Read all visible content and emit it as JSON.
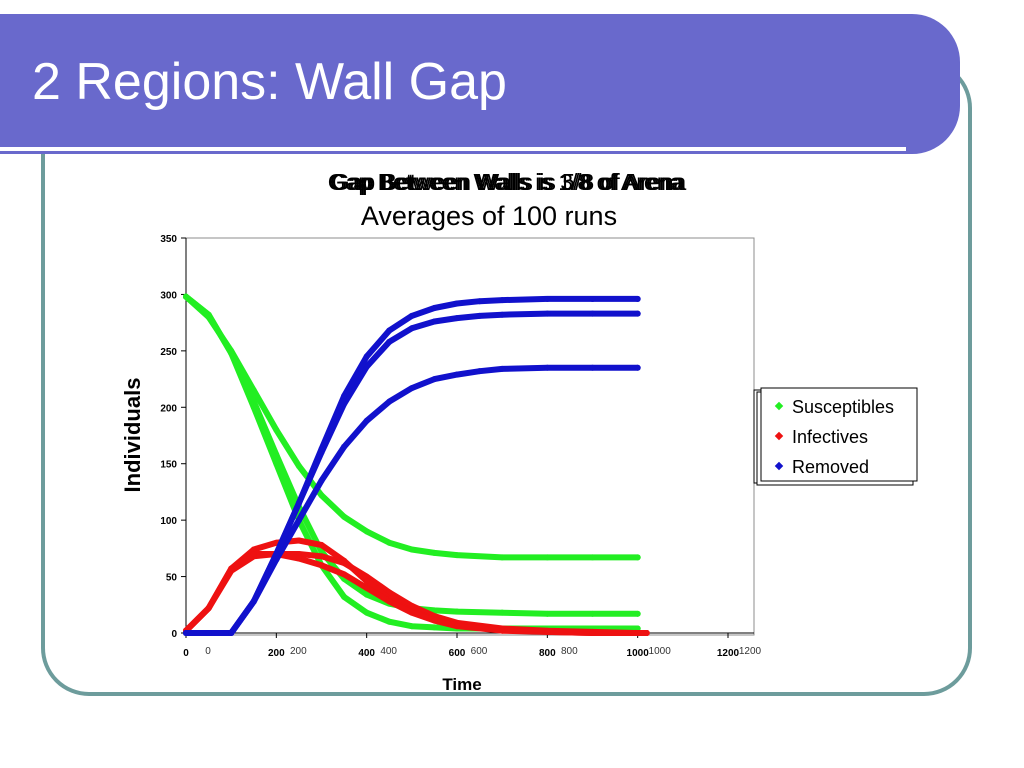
{
  "slide": {
    "title": "2 Regions: Wall Gap"
  },
  "colors": {
    "title_bar": "#6969cc",
    "frame": "#6d9c9c",
    "susceptibles": "#22ee22",
    "infectives": "#ee1111",
    "removed": "#1111cc"
  },
  "chart_data": {
    "type": "scatter",
    "title_overlaps": [
      "Gap Between Walls is 1/8 of Arena",
      "Gap Between Walls is 3/8 of Arena",
      "Gap Between Walls is 5/8 of Arena"
    ],
    "subtitle": "Averages of 100 runs",
    "xlabel": "Time",
    "ylabel": "Individuals",
    "xlim": [
      0,
      1200
    ],
    "ylim": [
      0,
      350
    ],
    "x_ticks": [
      "0",
      "200",
      "400",
      "600",
      "800",
      "1000",
      "1200"
    ],
    "y_ticks": [
      "0",
      "50",
      "100",
      "150",
      "200",
      "250",
      "300",
      "350"
    ],
    "grid": false,
    "legend_position": "right",
    "legend": [
      "Susceptibles",
      "Infectives",
      "Removed"
    ],
    "series": [
      {
        "name": "Susceptibles",
        "group": "S",
        "x": [
          0,
          50,
          100,
          150,
          200,
          250,
          300,
          350,
          400,
          450,
          500,
          550,
          600,
          700,
          800,
          900,
          1000
        ],
        "values": [
          298,
          280,
          250,
          215,
          180,
          148,
          122,
          103,
          90,
          80,
          74,
          71,
          69,
          67,
          67,
          67,
          67
        ]
      },
      {
        "name": "Susceptibles",
        "group": "S",
        "x": [
          0,
          50,
          100,
          150,
          200,
          250,
          300,
          350,
          400,
          450,
          500,
          550,
          600,
          700,
          800,
          900,
          1000
        ],
        "values": [
          298,
          282,
          248,
          205,
          158,
          112,
          72,
          48,
          34,
          26,
          22,
          20,
          19,
          18,
          17,
          17,
          17
        ]
      },
      {
        "name": "Susceptibles",
        "group": "S",
        "x": [
          0,
          50,
          100,
          150,
          200,
          250,
          300,
          350,
          400,
          450,
          500,
          550,
          600,
          700,
          800,
          900,
          1000
        ],
        "values": [
          298,
          282,
          248,
          200,
          150,
          100,
          60,
          32,
          18,
          10,
          6,
          5,
          4,
          4,
          4,
          4,
          4
        ]
      },
      {
        "name": "Infectives",
        "group": "I",
        "x": [
          0,
          50,
          100,
          150,
          200,
          250,
          300,
          350,
          400,
          450,
          500,
          550,
          600,
          700,
          800,
          900,
          1000,
          1020
        ],
        "values": [
          2,
          22,
          55,
          68,
          70,
          70,
          68,
          62,
          50,
          36,
          24,
          15,
          9,
          4,
          2,
          1,
          0,
          0
        ]
      },
      {
        "name": "Infectives",
        "group": "I",
        "x": [
          0,
          50,
          100,
          150,
          200,
          250,
          300,
          350,
          400,
          450,
          500,
          550,
          600,
          700,
          800,
          900,
          1000,
          1020
        ],
        "values": [
          2,
          22,
          57,
          74,
          80,
          82,
          78,
          64,
          46,
          30,
          19,
          12,
          7,
          3,
          1,
          0,
          0,
          0
        ]
      },
      {
        "name": "Infectives",
        "group": "I",
        "x": [
          0,
          50,
          100,
          150,
          200,
          250,
          300,
          350,
          400,
          450,
          500,
          550,
          600,
          700,
          800,
          900,
          1000,
          1020
        ],
        "values": [
          2,
          22,
          57,
          70,
          70,
          66,
          60,
          52,
          40,
          28,
          18,
          11,
          6,
          2,
          1,
          0,
          0,
          0
        ]
      },
      {
        "name": "Removed",
        "group": "R",
        "x": [
          0,
          50,
          100,
          150,
          200,
          250,
          300,
          350,
          400,
          450,
          500,
          550,
          600,
          650,
          700,
          800,
          900,
          1000
        ],
        "values": [
          0,
          0,
          0,
          28,
          65,
          100,
          135,
          165,
          188,
          205,
          217,
          225,
          229,
          232,
          234,
          235,
          235,
          235
        ]
      },
      {
        "name": "Removed",
        "group": "R",
        "x": [
          0,
          50,
          100,
          150,
          200,
          250,
          300,
          350,
          400,
          450,
          500,
          550,
          600,
          650,
          700,
          800,
          900,
          1000
        ],
        "values": [
          0,
          0,
          0,
          28,
          70,
          115,
          160,
          203,
          236,
          258,
          270,
          276,
          279,
          281,
          282,
          283,
          283,
          283
        ]
      },
      {
        "name": "Removed",
        "group": "R",
        "x": [
          0,
          50,
          100,
          150,
          200,
          250,
          300,
          350,
          400,
          450,
          500,
          550,
          600,
          650,
          700,
          800,
          900,
          1000
        ],
        "values": [
          0,
          0,
          0,
          28,
          70,
          115,
          163,
          210,
          245,
          268,
          281,
          288,
          292,
          294,
          295,
          296,
          296,
          296
        ]
      }
    ]
  }
}
